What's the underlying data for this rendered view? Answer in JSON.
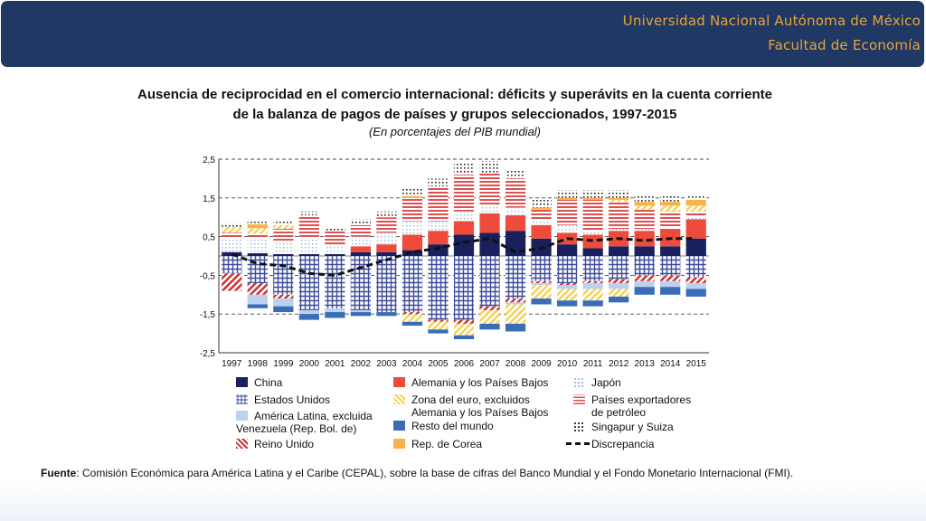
{
  "header": {
    "line1": "Universidad Nacional Autónoma de México",
    "line2": "Facultad de Economía"
  },
  "chart_title": {
    "line1": "Ausencia de reciprocidad en el comercio internacional: déficits y superávits en la cuenta corriente",
    "line2": "de la balanza de pagos de países y grupos seleccionados, 1997-2015",
    "subtitle": "(En porcentajes del PIB mundial)"
  },
  "source": {
    "label": "Fuente",
    "text": ": Comisión Económica para América Latina y el Caribe (CEPAL), sobre la base de cifras del Banco Mundial y el Fondo Monetario Internacional (FMI)."
  },
  "colors": {
    "header_bg": "#1f3864",
    "header_text": "#e8a43a",
    "china": "#1a1f5e",
    "estados_unidos": "#3d4b9b",
    "america_latina": "#bcd1ee",
    "reino_unido": "#cc3333",
    "alemania": "#ef4b3d",
    "zona_euro": "#f3d35a",
    "resto_mundo": "#3a6db5",
    "corea": "#f5b349",
    "japon": "#8fb5e0",
    "petroleo": "#e05050",
    "singapur": "#222222",
    "discrepancia": "#111111"
  },
  "chart_data": {
    "type": "bar",
    "stacked": true,
    "categories": [
      "1997",
      "1998",
      "1999",
      "2000",
      "2001",
      "2002",
      "2003",
      "2004",
      "2005",
      "2006",
      "2007",
      "2008",
      "2009",
      "2010",
      "2011",
      "2012",
      "2013",
      "2014",
      "2015"
    ],
    "ylim": [
      -2.5,
      2.5
    ],
    "yticks": [
      "2,5",
      "1,5",
      "0,5",
      "-0,5",
      "-1,5",
      "-2,5"
    ],
    "ytick_values": [
      2.5,
      1.5,
      0.5,
      -0.5,
      -1.5,
      -2.5
    ],
    "grid": "dashed horizontal",
    "positive_series": [
      {
        "key": "china",
        "name": "China",
        "values": [
          0.1,
          0.07,
          0.05,
          0.05,
          0.05,
          0.1,
          0.1,
          0.15,
          0.3,
          0.55,
          0.6,
          0.65,
          0.45,
          0.3,
          0.2,
          0.25,
          0.25,
          0.25,
          0.45
        ]
      },
      {
        "key": "alemania",
        "name": "Alemania y los Países Bajos",
        "values": [
          0.0,
          0.0,
          0.0,
          0.0,
          0.0,
          0.15,
          0.2,
          0.4,
          0.35,
          0.35,
          0.5,
          0.4,
          0.35,
          0.3,
          0.35,
          0.4,
          0.4,
          0.45,
          0.5
        ]
      },
      {
        "key": "japon",
        "name": "Japón",
        "values": [
          0.35,
          0.4,
          0.35,
          0.4,
          0.25,
          0.25,
          0.3,
          0.35,
          0.25,
          0.25,
          0.2,
          0.2,
          0.15,
          0.2,
          0.1,
          0.05,
          0.05,
          0.05,
          0.1
        ]
      },
      {
        "key": "petroleo",
        "name": "Países exportadores de petróleo",
        "values": [
          0.15,
          0.1,
          0.3,
          0.6,
          0.35,
          0.3,
          0.4,
          0.6,
          0.9,
          0.95,
          0.85,
          0.75,
          0.25,
          0.65,
          0.8,
          0.7,
          0.5,
          0.4,
          0.1
        ]
      },
      {
        "key": "zona_euro",
        "name": "Zona del euro, excluidos Alemania y los Países Bajos",
        "values": [
          0.15,
          0.15,
          0.1,
          0.0,
          0.0,
          0.0,
          0.0,
          0.0,
          0.0,
          0.0,
          0.0,
          0.0,
          0.0,
          0.0,
          0.0,
          0.05,
          0.1,
          0.15,
          0.15
        ]
      },
      {
        "key": "corea",
        "name": "Rep. de Corea",
        "values": [
          0.0,
          0.1,
          0.0,
          0.0,
          0.0,
          0.0,
          0.0,
          0.05,
          0.0,
          0.0,
          0.0,
          0.0,
          0.05,
          0.05,
          0.05,
          0.05,
          0.1,
          0.1,
          0.15
        ]
      },
      {
        "key": "singapur",
        "name": "Singapur y Suiza",
        "values": [
          0.1,
          0.1,
          0.1,
          0.1,
          0.1,
          0.15,
          0.15,
          0.2,
          0.2,
          0.3,
          0.3,
          0.2,
          0.2,
          0.2,
          0.2,
          0.2,
          0.15,
          0.15,
          0.1
        ]
      }
    ],
    "negative_series": [
      {
        "key": "estados_unidos",
        "name": "Estados Unidos",
        "values": [
          -0.45,
          -0.7,
          -1.0,
          -1.4,
          -1.35,
          -1.4,
          -1.45,
          -1.45,
          -1.65,
          -1.65,
          -1.3,
          -1.1,
          -0.65,
          -0.7,
          -0.65,
          -0.6,
          -0.5,
          -0.5,
          -0.55
        ]
      },
      {
        "key": "reino_unido",
        "name": "Reino Unido",
        "values": [
          -0.45,
          -0.3,
          -0.1,
          0.0,
          0.0,
          0.0,
          0.0,
          -0.05,
          -0.05,
          -0.1,
          -0.1,
          -0.1,
          -0.05,
          -0.05,
          -0.05,
          -0.1,
          -0.15,
          -0.15,
          -0.15
        ]
      },
      {
        "key": "america_latina",
        "name": "América Latina, excluida Venezuela (Rep. Bol. de)",
        "values": [
          0.0,
          -0.25,
          -0.2,
          -0.1,
          -0.1,
          -0.05,
          0.0,
          0.0,
          0.0,
          0.0,
          0.0,
          -0.05,
          -0.05,
          -0.1,
          -0.15,
          -0.15,
          -0.15,
          -0.15,
          -0.15
        ]
      },
      {
        "key": "zona_euro",
        "name": "Zona del euro, excluidos Alemania y los Países Bajos",
        "values": [
          0.0,
          0.0,
          0.0,
          0.0,
          0.0,
          0.0,
          0.0,
          -0.2,
          -0.2,
          -0.3,
          -0.35,
          -0.5,
          -0.35,
          -0.3,
          -0.3,
          -0.2,
          0.0,
          0.0,
          0.0
        ]
      },
      {
        "key": "resto_mundo",
        "name": "Resto del mundo",
        "values": [
          0.0,
          -0.1,
          -0.15,
          -0.15,
          -0.15,
          -0.1,
          -0.1,
          -0.1,
          -0.1,
          -0.1,
          -0.15,
          -0.2,
          -0.15,
          -0.15,
          -0.15,
          -0.15,
          -0.2,
          -0.2,
          -0.2
        ]
      }
    ],
    "line_series": {
      "key": "discrepancia",
      "name": "Discrepancia",
      "values": [
        0.05,
        -0.2,
        -0.25,
        -0.45,
        -0.5,
        -0.3,
        -0.1,
        0.1,
        0.2,
        0.35,
        0.45,
        0.1,
        0.2,
        0.45,
        0.4,
        0.45,
        0.4,
        0.45,
        0.45
      ]
    },
    "legend": {
      "placement": "bottom",
      "entries": [
        {
          "key": "china",
          "label": "China"
        },
        {
          "key": "estados_unidos",
          "label": "Estados Unidos"
        },
        {
          "key": "america_latina",
          "label": "América Latina, excluida",
          "label2": "Venezuela (Rep. Bol. de)"
        },
        {
          "key": "reino_unido",
          "label": "Reino Unido"
        },
        {
          "key": "alemania",
          "label": "Alemania y los Países Bajos"
        },
        {
          "key": "zona_euro",
          "label": "Zona del euro, excluidos",
          "label2": "Alemania y los Países Bajos"
        },
        {
          "key": "resto_mundo",
          "label": "Resto del mundo"
        },
        {
          "key": "corea",
          "label": "Rep. de Corea"
        },
        {
          "key": "japon",
          "label": "Japón"
        },
        {
          "key": "petroleo",
          "label": "Países exportadores",
          "label2": "de petróleo"
        },
        {
          "key": "singapur",
          "label": "Singapur y Suiza"
        },
        {
          "key": "discrepancia",
          "label": "Discrepancia"
        }
      ]
    }
  }
}
